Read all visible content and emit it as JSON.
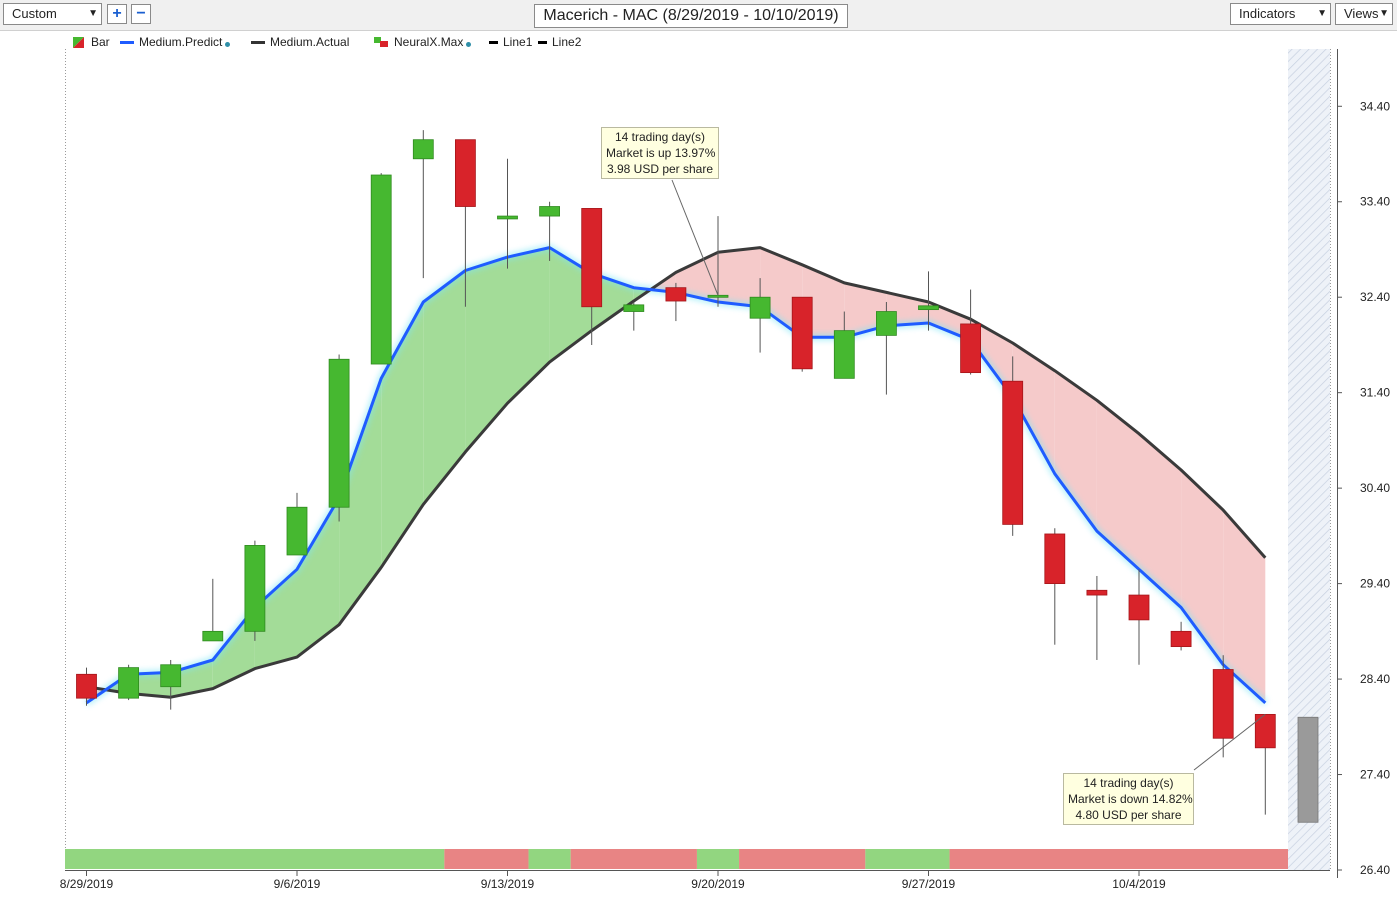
{
  "toolbar": {
    "preset": "Custom",
    "zoom_in_icon": "plus-icon",
    "zoom_out_icon": "minus-icon",
    "title": "Macerich - MAC (8/29/2019 - 10/10/2019)",
    "indicators": "Indicators",
    "views": "Views"
  },
  "legend": [
    {
      "label": "Bar",
      "kind": "bar-swatch"
    },
    {
      "label": "Medium.Predict",
      "kind": "line",
      "color": "#1f5cff",
      "dot": true
    },
    {
      "label": "Medium.Actual",
      "kind": "line",
      "color": "#333333"
    },
    {
      "label": "NeuralX.Max",
      "kind": "neural-swatch",
      "dot": true
    },
    {
      "label": "Line1",
      "kind": "line",
      "color": "#000000"
    },
    {
      "label": "Line2",
      "kind": "line",
      "color": "#000000"
    }
  ],
  "annotations": {
    "up": {
      "line1": "14 trading day(s)",
      "line2": "Market is up 13.97%",
      "line3": "3.98 USD per share"
    },
    "down": {
      "line1": "14 trading day(s)",
      "line2": "Market is down 14.82%",
      "line3": "4.80 USD per share"
    }
  },
  "colors": {
    "up": "#46b830",
    "down": "#d8232a",
    "predict": "#1f5cff",
    "actual": "#3a3a3a",
    "fill_up": "#a3dc98",
    "fill_down": "#f5caca",
    "band_up": "#92d680",
    "band_down": "#e88484"
  },
  "chart_data": {
    "type": "candlestick",
    "title": "Macerich - MAC (8/29/2019 - 10/10/2019)",
    "ylim": [
      26.4,
      35.0
    ],
    "yticks": [
      26.4,
      27.4,
      28.4,
      29.4,
      30.4,
      31.4,
      32.4,
      33.4,
      34.4
    ],
    "x_tick_labels": [
      {
        "index": 0,
        "label": "8/29/2019"
      },
      {
        "index": 5,
        "label": "9/6/2019"
      },
      {
        "index": 10,
        "label": "9/13/2019"
      },
      {
        "index": 15,
        "label": "9/20/2019"
      },
      {
        "index": 20,
        "label": "9/27/2019"
      },
      {
        "index": 25,
        "label": "10/4/2019"
      }
    ],
    "candles": [
      {
        "open": 28.45,
        "high": 28.52,
        "low": 28.12,
        "close": 28.2
      },
      {
        "open": 28.2,
        "high": 28.55,
        "low": 28.18,
        "close": 28.52
      },
      {
        "open": 28.32,
        "high": 28.6,
        "low": 28.08,
        "close": 28.55
      },
      {
        "open": 28.8,
        "high": 29.45,
        "low": 28.8,
        "close": 28.9
      },
      {
        "open": 28.9,
        "high": 29.85,
        "low": 28.8,
        "close": 29.8
      },
      {
        "open": 29.7,
        "high": 30.35,
        "low": 29.7,
        "close": 30.2
      },
      {
        "open": 30.2,
        "high": 31.8,
        "low": 30.05,
        "close": 31.75
      },
      {
        "open": 31.7,
        "high": 33.7,
        "low": 31.7,
        "close": 33.68
      },
      {
        "open": 33.85,
        "high": 34.15,
        "low": 32.6,
        "close": 34.05
      },
      {
        "open": 34.05,
        "high": 34.05,
        "low": 32.3,
        "close": 33.35
      },
      {
        "open": 33.22,
        "high": 33.85,
        "low": 32.7,
        "close": 33.25
      },
      {
        "open": 33.25,
        "high": 33.4,
        "low": 32.78,
        "close": 33.35
      },
      {
        "open": 33.33,
        "high": 33.33,
        "low": 31.9,
        "close": 32.3
      },
      {
        "open": 32.25,
        "high": 32.35,
        "low": 32.05,
        "close": 32.32
      },
      {
        "open": 32.5,
        "high": 32.55,
        "low": 32.15,
        "close": 32.36
      },
      {
        "open": 32.4,
        "high": 33.25,
        "low": 32.3,
        "close": 32.42
      },
      {
        "open": 32.18,
        "high": 32.6,
        "low": 31.82,
        "close": 32.4
      },
      {
        "open": 32.4,
        "high": 32.4,
        "low": 31.62,
        "close": 31.65
      },
      {
        "open": 31.55,
        "high": 32.25,
        "low": 31.55,
        "close": 32.05
      },
      {
        "open": 32.0,
        "high": 32.35,
        "low": 31.38,
        "close": 32.25
      },
      {
        "open": 32.27,
        "high": 32.67,
        "low": 32.05,
        "close": 32.31
      },
      {
        "open": 32.12,
        "high": 32.48,
        "low": 31.59,
        "close": 31.61
      },
      {
        "open": 31.52,
        "high": 31.78,
        "low": 29.9,
        "close": 30.02
      },
      {
        "open": 29.92,
        "high": 29.98,
        "low": 28.76,
        "close": 29.4
      },
      {
        "open": 29.33,
        "high": 29.48,
        "low": 28.6,
        "close": 29.28
      },
      {
        "open": 29.28,
        "high": 29.55,
        "low": 28.55,
        "close": 29.02
      },
      {
        "open": 28.9,
        "high": 29.0,
        "low": 28.7,
        "close": 28.74
      },
      {
        "open": 28.5,
        "high": 28.65,
        "low": 27.58,
        "close": 27.78
      },
      {
        "open": 28.03,
        "high": 28.03,
        "low": 26.98,
        "close": 27.68
      }
    ],
    "series": [
      {
        "name": "Medium.Predict",
        "values": [
          28.15,
          28.45,
          28.47,
          28.6,
          29.15,
          29.55,
          30.3,
          31.55,
          32.35,
          32.68,
          32.82,
          32.92,
          32.65,
          32.5,
          32.45,
          32.35,
          32.3,
          31.98,
          31.98,
          32.1,
          32.13,
          31.95,
          31.35,
          30.55,
          29.95,
          29.55,
          29.15,
          28.55,
          28.15
        ]
      },
      {
        "name": "Medium.Actual",
        "values": [
          28.32,
          28.25,
          28.21,
          28.3,
          28.51,
          28.63,
          28.97,
          29.57,
          30.23,
          30.78,
          31.29,
          31.72,
          32.05,
          32.36,
          32.66,
          32.87,
          32.92,
          32.74,
          32.55,
          32.45,
          32.35,
          32.17,
          31.92,
          31.63,
          31.32,
          30.97,
          30.59,
          30.17,
          29.67
        ]
      }
    ],
    "signal_bands": [
      {
        "from": 0,
        "to": 9,
        "state": "up"
      },
      {
        "from": 9,
        "to": 11,
        "state": "down"
      },
      {
        "from": 11,
        "to": 12,
        "state": "up"
      },
      {
        "from": 12,
        "to": 15,
        "state": "down"
      },
      {
        "from": 15,
        "to": 16,
        "state": "up"
      },
      {
        "from": 16,
        "to": 19,
        "state": "down"
      },
      {
        "from": 19,
        "to": 21,
        "state": "up"
      },
      {
        "from": 21,
        "to": 29,
        "state": "down"
      }
    ],
    "forecast_bar": {
      "high": 28.0,
      "low": 26.9
    }
  }
}
